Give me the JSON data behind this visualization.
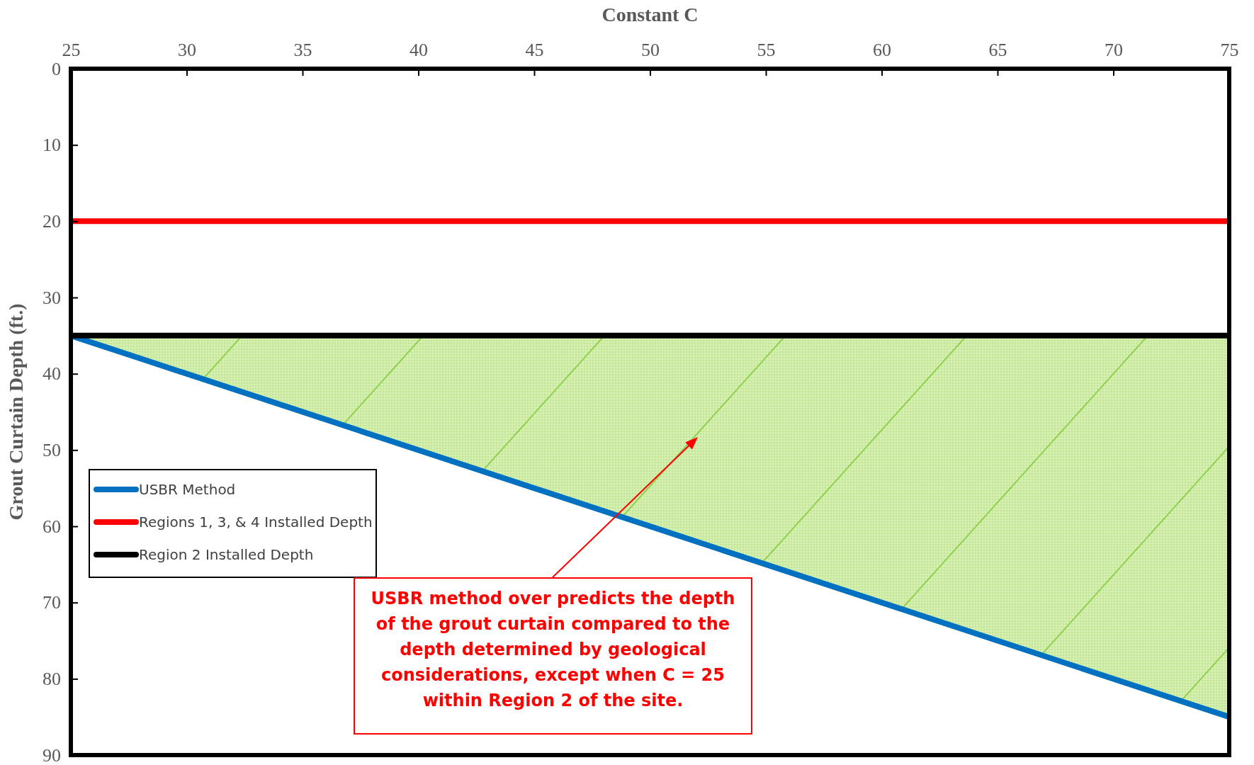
{
  "chart_data": {
    "type": "line",
    "xlabel": "Constant C",
    "ylabel": "Grout Curtain Depth (ft.)",
    "xlim": [
      25,
      75
    ],
    "xticks": [
      25,
      30,
      35,
      40,
      45,
      50,
      55,
      60,
      65,
      70,
      75
    ],
    "ylim": [
      90,
      0
    ],
    "yticks": [
      0,
      10,
      20,
      30,
      40,
      50,
      60,
      70,
      80,
      90
    ],
    "x": [
      25,
      75
    ],
    "grid": false,
    "legend": "left",
    "line_style": "solid",
    "marker": "none",
    "series": [
      {
        "name": "USBR Method",
        "color": "#0070c0",
        "values": [
          35,
          85
        ],
        "lower": [
          35,
          35
        ],
        "upper": [
          35,
          85
        ]
      },
      {
        "name": "Regions 1, 3, & 4 Installed Depth",
        "color": "#ff0000",
        "values": [
          20,
          20
        ]
      },
      {
        "name": "Region 2 Installed Depth",
        "color": "#000000",
        "values": [
          35,
          35
        ]
      }
    ],
    "annotations": [
      "USBR method over predicts the depth of the grout curtain compared to the depth determined by geological considerations, except when C = 25 within Region 2 of the site."
    ]
  }
}
